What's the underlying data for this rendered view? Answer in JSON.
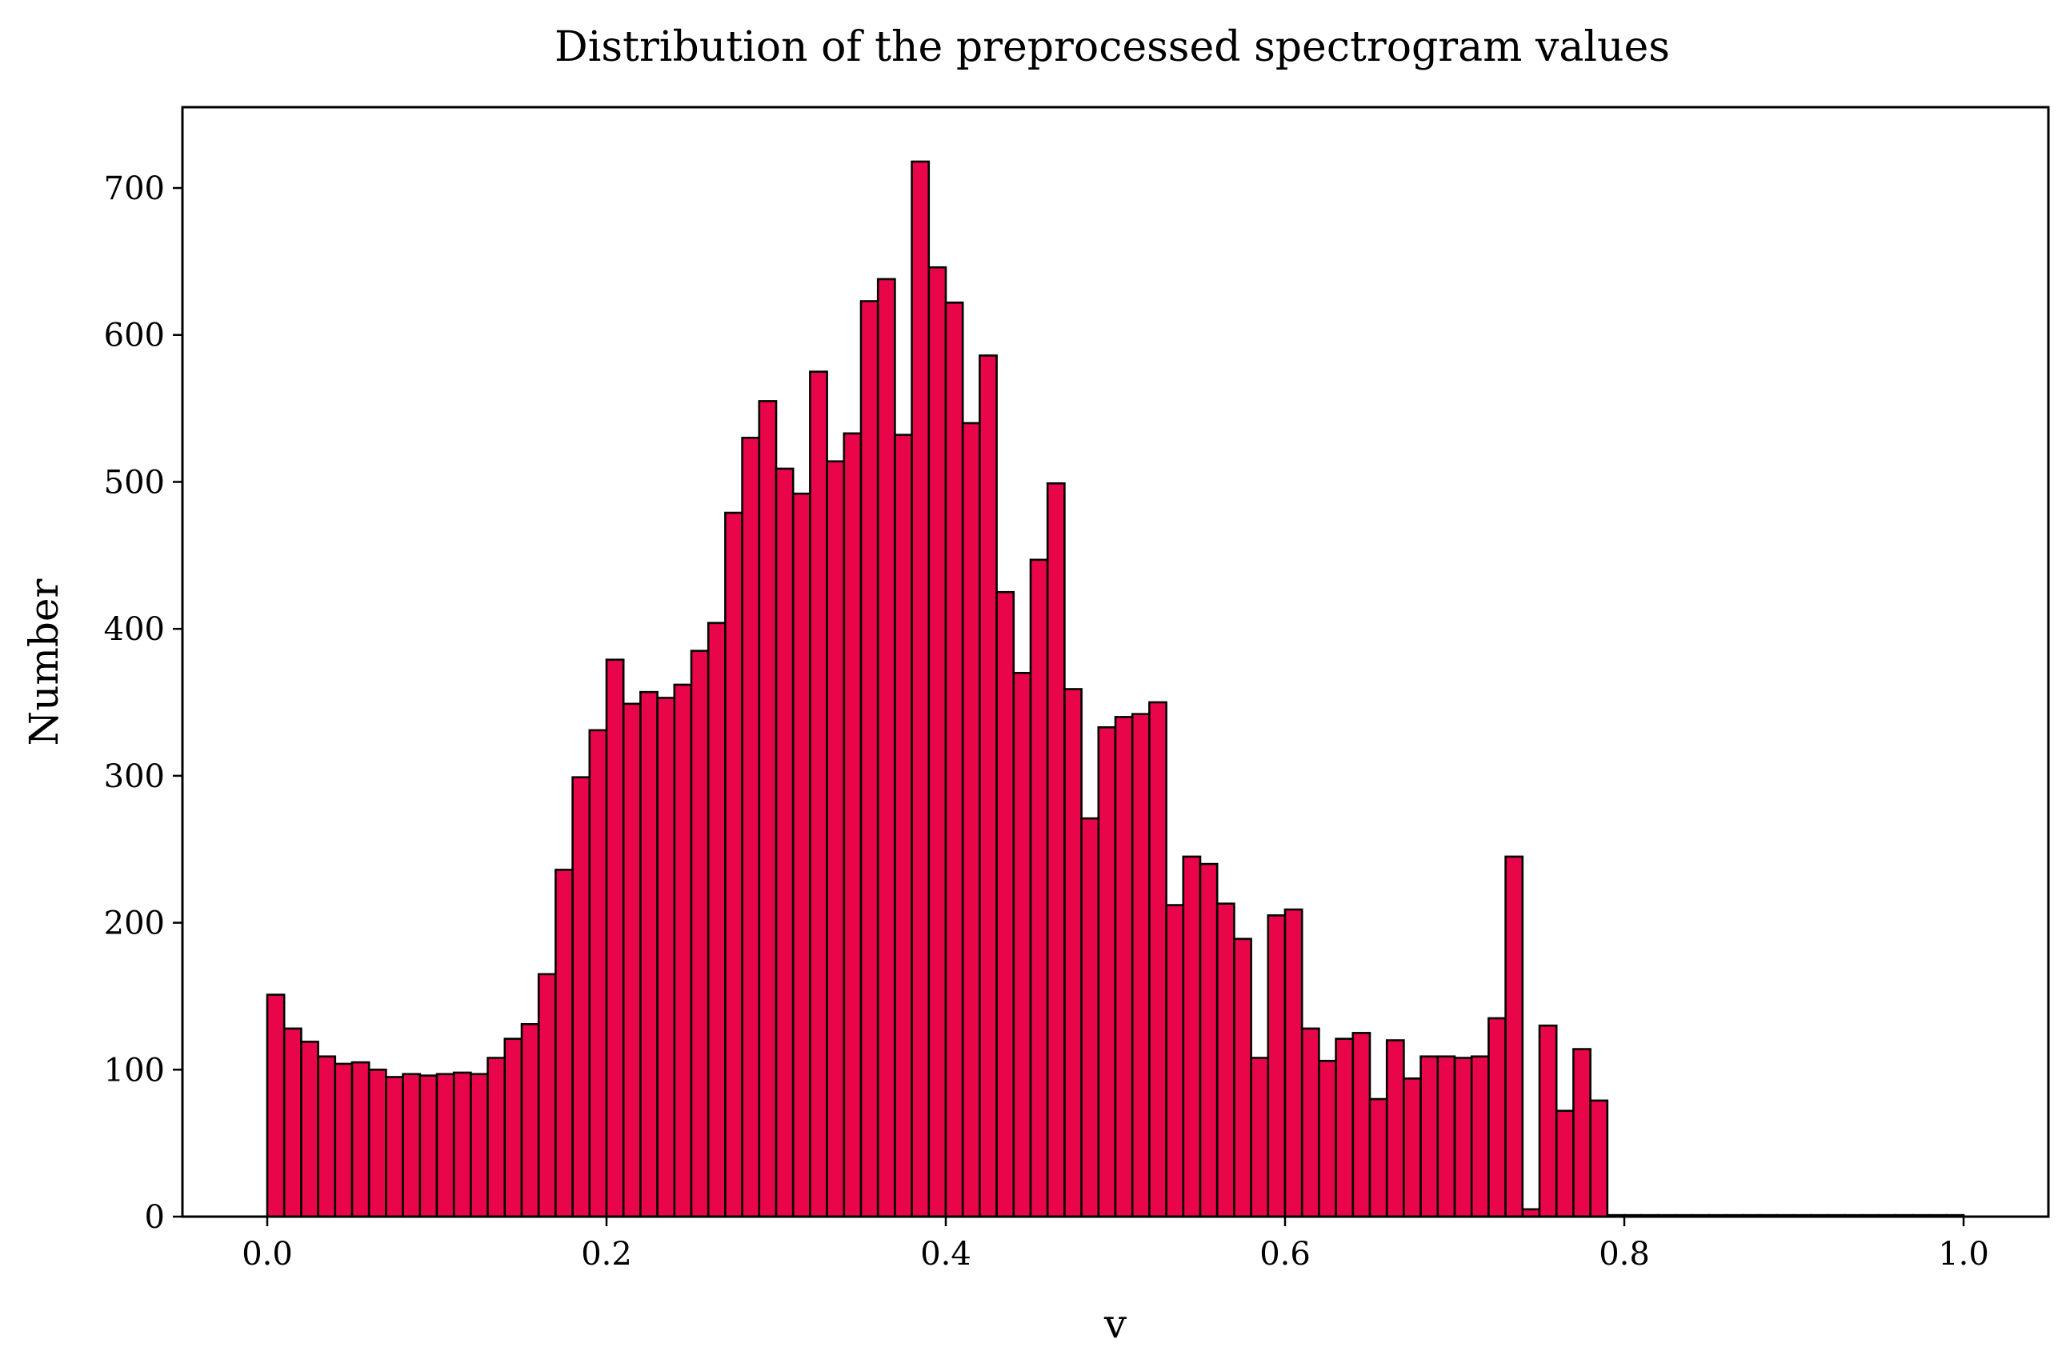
{
  "chart_data": {
    "type": "bar",
    "title": "Distribution of the preprocessed spectrogram values",
    "xlabel": "v",
    "ylabel": "Number",
    "xlim": [
      -0.05,
      1.05
    ],
    "ylim": [
      0,
      755
    ],
    "xticks": [
      0.0,
      0.2,
      0.4,
      0.6,
      0.8,
      1.0
    ],
    "xtick_labels": [
      "0.0",
      "0.2",
      "0.4",
      "0.6",
      "0.8",
      "1.0"
    ],
    "yticks": [
      0,
      100,
      200,
      300,
      400,
      500,
      600,
      700
    ],
    "ytick_labels": [
      "0",
      "100",
      "200",
      "300",
      "400",
      "500",
      "600",
      "700"
    ],
    "bin_start": 0.0,
    "bin_width": 0.01,
    "values": [
      151,
      128,
      119,
      109,
      104,
      105,
      100,
      95,
      97,
      96,
      97,
      98,
      97,
      108,
      121,
      131,
      165,
      236,
      299,
      331,
      379,
      349,
      357,
      353,
      362,
      385,
      404,
      479,
      530,
      555,
      509,
      492,
      575,
      514,
      533,
      623,
      638,
      532,
      718,
      646,
      622,
      540,
      586,
      425,
      370,
      447,
      499,
      359,
      271,
      333,
      340,
      342,
      350,
      212,
      245,
      240,
      213,
      189,
      108,
      205,
      209,
      128,
      106,
      121,
      125,
      80,
      120,
      94,
      109,
      109,
      108,
      109,
      135,
      245,
      5,
      130,
      72,
      114,
      79,
      1,
      1,
      1,
      1,
      1,
      1,
      1,
      1,
      1,
      1,
      1,
      1,
      1,
      1,
      1,
      1,
      1,
      1,
      1,
      1,
      1
    ],
    "colors": {
      "bar_fill": "#e8054a",
      "bar_edge": "#000000"
    },
    "grid": false,
    "legend": "none"
  }
}
